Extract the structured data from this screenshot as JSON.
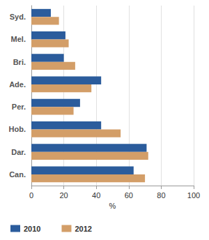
{
  "chart_data": {
    "type": "bar",
    "orientation": "horizontal",
    "categories": [
      "Syd.",
      "Mel.",
      "Bri.",
      "Ade.",
      "Per.",
      "Hob.",
      "Dar.",
      "Can."
    ],
    "series": [
      {
        "name": "2010",
        "color": "#2b5c9c",
        "values": [
          12,
          21,
          20,
          43,
          30,
          43,
          71,
          63
        ]
      },
      {
        "name": "2012",
        "color": "#d39e68",
        "values": [
          17,
          23,
          27,
          37,
          26,
          55,
          72,
          70
        ]
      }
    ],
    "x_label": "%",
    "xlim": [
      0,
      100
    ],
    "xticks": [
      0,
      20,
      40,
      60,
      80,
      100
    ],
    "grid": true,
    "legend": "bottom-left"
  }
}
